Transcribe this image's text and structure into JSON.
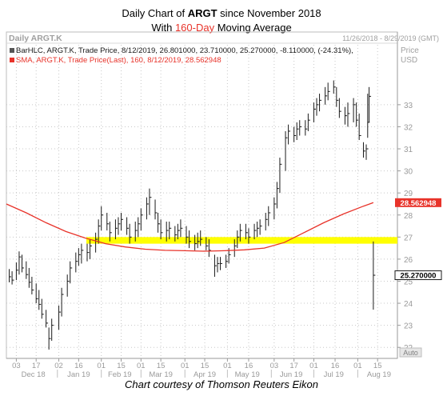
{
  "header": {
    "line1_prefix": "Daily Chart of ",
    "line1_ticker": "ARGT",
    "line1_suffix": " since November 2018",
    "line2_prefix": "With ",
    "line2_highlight": "160-Day",
    "line2_suffix": " Moving Average"
  },
  "panel": {
    "name": "Daily ARGT.K",
    "date_range": "11/26/2018 - 8/29/2019 (GMT)",
    "price_unit_1": "Price",
    "price_unit_2": "USD",
    "legend_bar": "BarHLC, ARGT.K, Trade Price, 8/12/2019, 26.801000, 23.710000, 25.270000, -8.110000, (-24.31%),",
    "legend_sma": "SMA, ARGT.K, Trade Price(Last), 160, 8/12/2019, 28.562948",
    "sma_tag": "28.562948",
    "price_tag": "25.270000",
    "auto_label": "Auto"
  },
  "footer": {
    "credit": "Chart courtesy of Thomson Reuters Eikon"
  },
  "colors": {
    "bars": "#1a1a1a",
    "sma": "#e8332a",
    "highlight_band": "#ffff00",
    "title_accent": "#e8332a",
    "grid": "#c8c8c8"
  },
  "chart_data": {
    "type": "line",
    "title": "Daily Chart of ARGT since November 2018",
    "y_ticks": [
      22,
      23,
      24,
      25,
      26,
      27,
      28,
      29,
      30,
      31,
      32,
      33
    ],
    "ylim": [
      21.5,
      34.7
    ],
    "x_day_ticks": [
      "03",
      "17",
      "02",
      "16",
      "01",
      "15",
      "01",
      "15",
      "01",
      "15",
      "01",
      "16",
      "03",
      "17",
      "01",
      "16",
      "01",
      "15"
    ],
    "x_months": [
      "Dec 18",
      "Jan 19",
      "Feb 19",
      "Mar 19",
      "Apr 19",
      "May 19",
      "Jun 19",
      "Jul 19",
      "Aug 19"
    ],
    "highlight_band": [
      26.7,
      27.0
    ],
    "series": [
      {
        "name": "BarHLC, ARGT.K",
        "type": "hlc-bars",
        "points": [
          [
            "2018-11-28",
            24.95,
            25.55,
            25.2
          ],
          [
            "2018-11-30",
            24.85,
            25.45,
            25.05
          ],
          [
            "2018-12-03",
            25.05,
            25.85,
            25.5
          ],
          [
            "2018-12-05",
            25.3,
            26.35,
            26.1
          ],
          [
            "2018-12-07",
            25.4,
            26.2,
            25.6
          ],
          [
            "2018-12-10",
            25.1,
            25.9,
            25.3
          ],
          [
            "2018-12-12",
            24.7,
            25.6,
            24.95
          ],
          [
            "2018-12-14",
            24.4,
            25.2,
            24.6
          ],
          [
            "2018-12-17",
            24.0,
            24.9,
            24.2
          ],
          [
            "2018-12-19",
            23.7,
            24.6,
            23.95
          ],
          [
            "2018-12-21",
            23.3,
            24.2,
            23.5
          ],
          [
            "2018-12-24",
            22.9,
            23.7,
            23.1
          ],
          [
            "2018-12-26",
            21.9,
            22.9,
            22.4
          ],
          [
            "2018-12-28",
            22.3,
            23.3,
            23.0
          ],
          [
            "2019-01-02",
            22.8,
            23.9,
            23.6
          ],
          [
            "2019-01-04",
            23.4,
            24.7,
            24.4
          ],
          [
            "2019-01-08",
            24.3,
            25.3,
            25.0
          ],
          [
            "2019-01-10",
            24.9,
            25.9,
            25.6
          ],
          [
            "2019-01-14",
            25.4,
            26.3,
            25.9
          ],
          [
            "2019-01-16",
            25.7,
            26.5,
            26.2
          ],
          [
            "2019-01-18",
            25.8,
            26.7,
            26.4
          ],
          [
            "2019-01-22",
            25.9,
            26.7,
            26.3
          ],
          [
            "2019-01-24",
            26.0,
            26.9,
            26.6
          ],
          [
            "2019-01-28",
            26.3,
            27.2,
            26.9
          ],
          [
            "2019-01-30",
            26.7,
            27.8,
            27.5
          ],
          [
            "2019-02-01",
            27.3,
            28.4,
            28.0
          ],
          [
            "2019-02-05",
            27.3,
            28.1,
            27.6
          ],
          [
            "2019-02-07",
            26.8,
            27.7,
            27.2
          ],
          [
            "2019-02-11",
            26.9,
            27.8,
            27.4
          ],
          [
            "2019-02-13",
            27.1,
            27.9,
            27.6
          ],
          [
            "2019-02-15",
            27.3,
            28.1,
            27.8
          ],
          [
            "2019-02-19",
            27.1,
            27.9,
            27.4
          ],
          [
            "2019-02-21",
            26.7,
            27.6,
            27.0
          ],
          [
            "2019-02-25",
            26.8,
            27.7,
            27.3
          ],
          [
            "2019-02-27",
            27.0,
            27.9,
            27.6
          ],
          [
            "2019-03-01",
            27.3,
            28.3,
            28.0
          ],
          [
            "2019-03-05",
            27.8,
            28.8,
            28.5
          ],
          [
            "2019-03-07",
            28.0,
            29.2,
            28.8
          ],
          [
            "2019-03-11",
            27.8,
            28.7,
            28.1
          ],
          [
            "2019-03-13",
            27.2,
            28.1,
            27.6
          ],
          [
            "2019-03-15",
            26.9,
            27.8,
            27.2
          ],
          [
            "2019-03-19",
            26.8,
            27.7,
            27.3
          ],
          [
            "2019-03-21",
            26.9,
            27.7,
            27.4
          ],
          [
            "2019-03-25",
            26.8,
            27.5,
            27.1
          ],
          [
            "2019-03-27",
            26.9,
            27.6,
            27.3
          ],
          [
            "2019-03-29",
            27.0,
            27.8,
            27.4
          ],
          [
            "2019-04-02",
            26.7,
            27.5,
            27.0
          ],
          [
            "2019-04-04",
            26.5,
            27.3,
            26.8
          ],
          [
            "2019-04-08",
            26.4,
            27.1,
            26.7
          ],
          [
            "2019-04-10",
            26.5,
            27.2,
            26.8
          ],
          [
            "2019-04-12",
            26.6,
            27.3,
            26.9
          ],
          [
            "2019-04-16",
            26.4,
            27.0,
            26.6
          ],
          [
            "2019-04-18",
            26.1,
            26.9,
            26.4
          ],
          [
            "2019-04-22",
            25.2,
            26.2,
            25.7
          ],
          [
            "2019-04-24",
            25.4,
            26.1,
            25.8
          ],
          [
            "2019-04-26",
            25.5,
            26.1,
            25.8
          ],
          [
            "2019-04-30",
            25.6,
            26.2,
            25.9
          ],
          [
            "2019-05-02",
            25.8,
            26.5,
            26.2
          ],
          [
            "2019-05-06",
            26.1,
            26.9,
            26.6
          ],
          [
            "2019-05-08",
            26.5,
            27.3,
            27.0
          ],
          [
            "2019-05-10",
            26.8,
            27.6,
            27.3
          ],
          [
            "2019-05-14",
            26.9,
            27.6,
            27.2
          ],
          [
            "2019-05-16",
            26.7,
            27.4,
            27.0
          ],
          [
            "2019-05-20",
            26.9,
            27.6,
            27.3
          ],
          [
            "2019-05-22",
            27.0,
            27.7,
            27.4
          ],
          [
            "2019-05-24",
            27.1,
            27.8,
            27.5
          ],
          [
            "2019-05-28",
            27.3,
            28.1,
            27.8
          ],
          [
            "2019-05-30",
            27.5,
            28.4,
            28.1
          ],
          [
            "2019-06-03",
            27.8,
            28.8,
            28.5
          ],
          [
            "2019-06-05",
            28.3,
            29.5,
            29.2
          ],
          [
            "2019-06-07",
            29.0,
            30.6,
            30.3
          ],
          [
            "2019-06-11",
            30.0,
            31.8,
            31.5
          ],
          [
            "2019-06-13",
            31.2,
            32.1,
            31.8
          ],
          [
            "2019-06-17",
            31.3,
            32.0,
            31.6
          ],
          [
            "2019-06-19",
            31.4,
            32.2,
            31.9
          ],
          [
            "2019-06-21",
            31.6,
            32.3,
            32.0
          ],
          [
            "2019-06-25",
            31.6,
            32.3,
            31.9
          ],
          [
            "2019-06-27",
            31.8,
            32.6,
            32.3
          ],
          [
            "2019-07-01",
            32.2,
            33.1,
            32.8
          ],
          [
            "2019-07-03",
            32.5,
            33.3,
            33.0
          ],
          [
            "2019-07-05",
            32.7,
            33.5,
            33.2
          ],
          [
            "2019-07-09",
            33.0,
            33.8,
            33.4
          ],
          [
            "2019-07-11",
            33.2,
            34.0,
            33.6
          ],
          [
            "2019-07-15",
            33.5,
            34.1,
            33.8
          ],
          [
            "2019-07-17",
            32.9,
            33.8,
            33.2
          ],
          [
            "2019-07-19",
            32.4,
            33.3,
            32.7
          ],
          [
            "2019-07-23",
            32.1,
            32.9,
            32.5
          ],
          [
            "2019-07-25",
            32.0,
            33.1,
            32.6
          ],
          [
            "2019-07-29",
            32.2,
            33.3,
            33.0
          ],
          [
            "2019-07-31",
            32.0,
            33.1,
            32.3
          ],
          [
            "2019-08-02",
            31.4,
            32.6,
            31.6
          ],
          [
            "2019-08-05",
            30.6,
            31.3,
            30.9
          ],
          [
            "2019-08-07",
            30.5,
            31.2,
            31.0
          ],
          [
            "2019-08-08",
            31.5,
            33.5,
            32.2
          ],
          [
            "2019-08-09",
            32.2,
            33.8,
            33.38
          ],
          [
            "2019-08-12",
            23.71,
            26.8,
            25.27
          ]
        ]
      },
      {
        "name": "SMA, ARGT.K, 160",
        "type": "line",
        "points": [
          [
            "2018-11-26",
            28.5
          ],
          [
            "2018-12-10",
            28.1
          ],
          [
            "2018-12-24",
            27.65
          ],
          [
            "2019-01-07",
            27.25
          ],
          [
            "2019-01-21",
            26.95
          ],
          [
            "2019-02-04",
            26.7
          ],
          [
            "2019-02-18",
            26.55
          ],
          [
            "2019-03-04",
            26.45
          ],
          [
            "2019-03-18",
            26.4
          ],
          [
            "2019-04-01",
            26.38
          ],
          [
            "2019-04-15",
            26.36
          ],
          [
            "2019-04-29",
            26.38
          ],
          [
            "2019-05-13",
            26.42
          ],
          [
            "2019-05-27",
            26.5
          ],
          [
            "2019-06-10",
            26.75
          ],
          [
            "2019-06-24",
            27.2
          ],
          [
            "2019-07-08",
            27.65
          ],
          [
            "2019-07-22",
            28.05
          ],
          [
            "2019-08-05",
            28.4
          ],
          [
            "2019-08-12",
            28.56
          ]
        ]
      }
    ]
  }
}
